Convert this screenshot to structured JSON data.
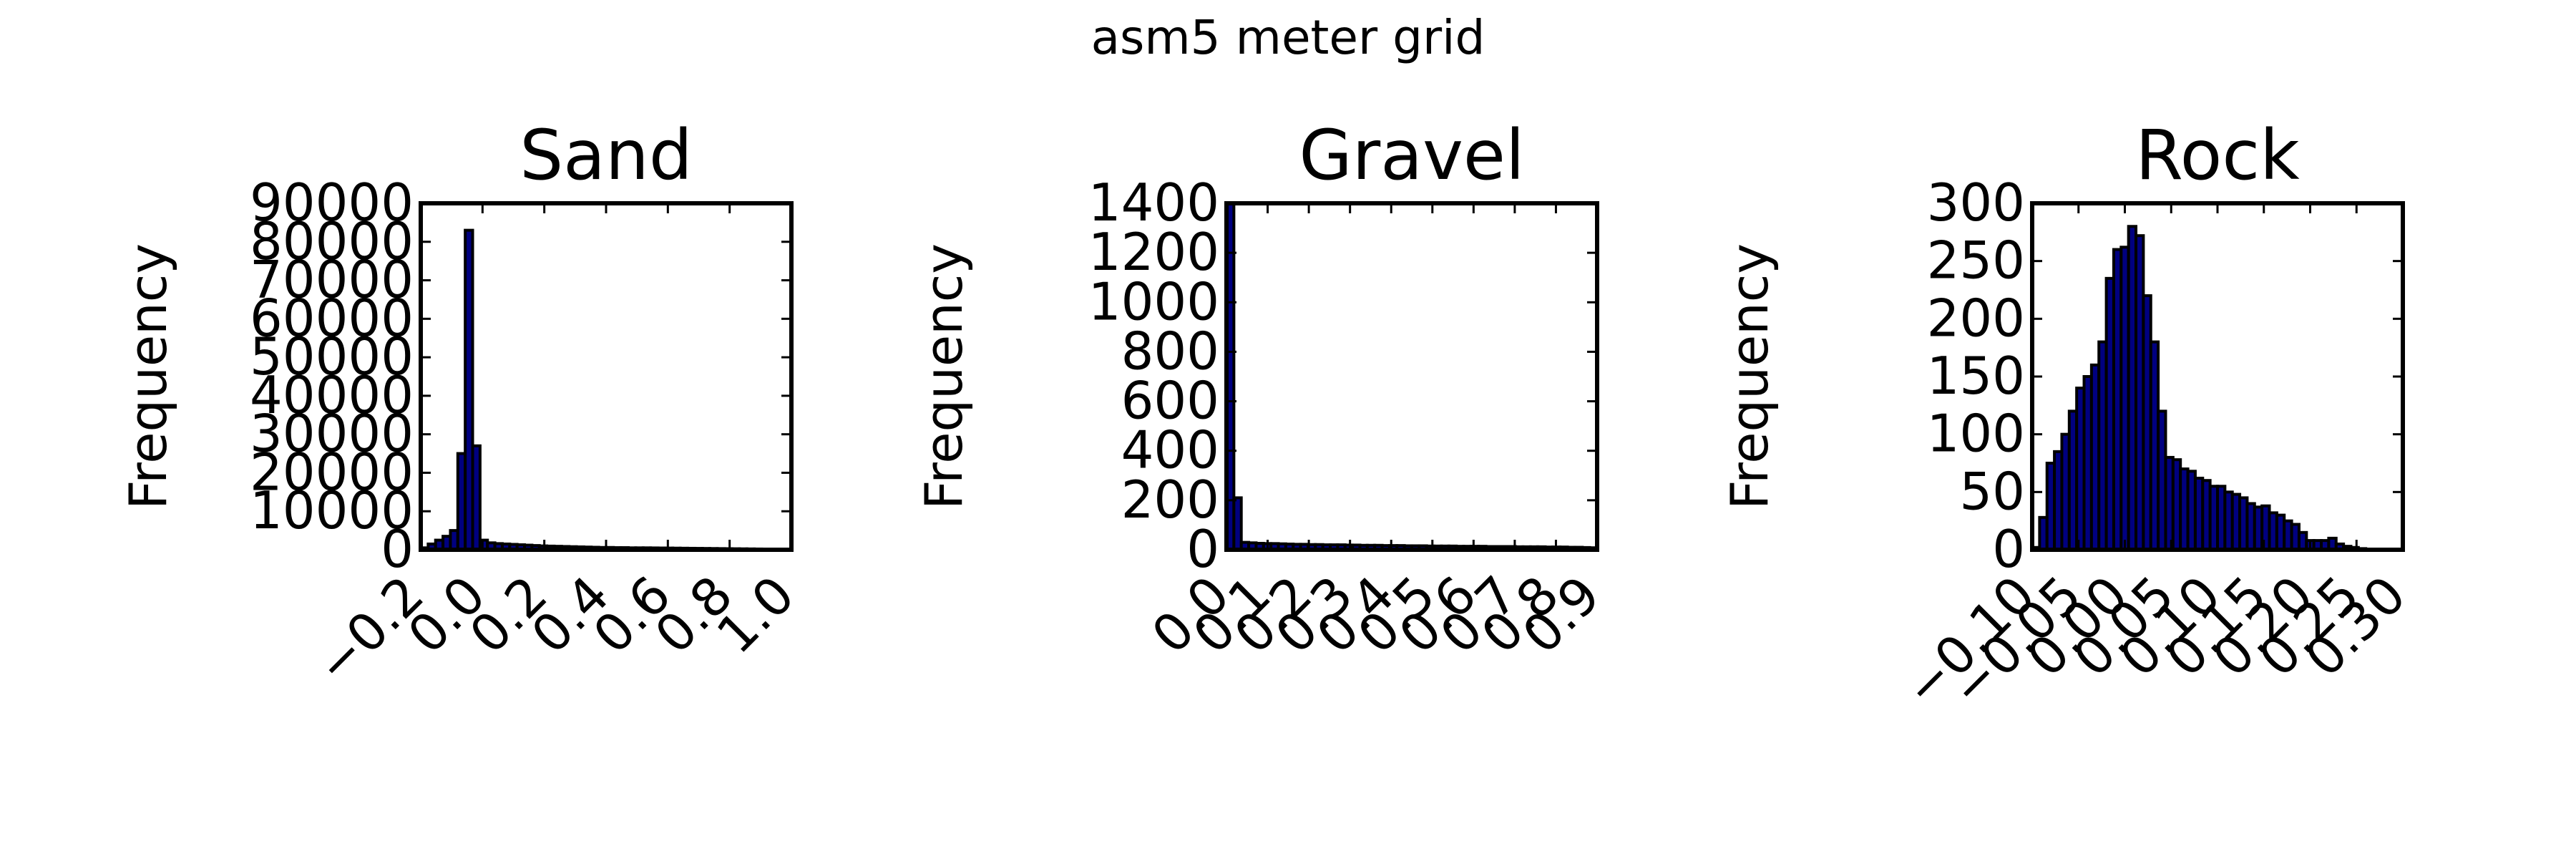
{
  "figure": {
    "suptitle": "asm5 meter grid"
  },
  "colors": {
    "bar_fill": "#000080",
    "bar_edge": "#000000",
    "axes": "#000000",
    "background": "#ffffff"
  },
  "chart_data": [
    {
      "type": "bar",
      "title": "Sand",
      "xlabel": "",
      "ylabel": "Frequency",
      "xlim": [
        -0.2,
        1.0
      ],
      "ylim": [
        0,
        90000
      ],
      "xticks": [
        -0.2,
        0.0,
        0.2,
        0.4,
        0.6,
        0.8,
        1.0
      ],
      "xtick_labels": [
        "−0.2",
        "0.0",
        "0.2",
        "0.4",
        "0.6",
        "0.8",
        "1.0"
      ],
      "yticks": [
        0,
        10000,
        20000,
        30000,
        40000,
        50000,
        60000,
        70000,
        80000,
        90000
      ],
      "ytick_labels": [
        "0",
        "10000",
        "20000",
        "30000",
        "40000",
        "50000",
        "60000",
        "70000",
        "80000",
        "90000"
      ],
      "bins": {
        "start": -0.2,
        "width": 0.024
      },
      "values": [
        500,
        1500,
        2500,
        3500,
        5000,
        25000,
        83000,
        27000,
        2500,
        1800,
        1600,
        1500,
        1400,
        1300,
        1200,
        1100,
        1000,
        950,
        900,
        850,
        800,
        750,
        700,
        650,
        600,
        600,
        550,
        550,
        500,
        500,
        500,
        480,
        460,
        440,
        420,
        400,
        380,
        360,
        340,
        320,
        300,
        280,
        260,
        240,
        220,
        200,
        180,
        160,
        140,
        120
      ]
    },
    {
      "type": "bar",
      "title": "Gravel",
      "xlabel": "",
      "ylabel": "Frequency",
      "xlim": [
        0.0,
        0.9
      ],
      "ylim": [
        0,
        1400
      ],
      "xticks": [
        0.0,
        0.1,
        0.2,
        0.3,
        0.4,
        0.5,
        0.6,
        0.7,
        0.8,
        0.9
      ],
      "xtick_labels": [
        "0.0",
        "0.1",
        "0.2",
        "0.3",
        "0.4",
        "0.5",
        "0.6",
        "0.7",
        "0.8",
        "0.9"
      ],
      "yticks": [
        0,
        200,
        400,
        600,
        800,
        1000,
        1200,
        1400
      ],
      "ytick_labels": [
        "0",
        "200",
        "400",
        "600",
        "800",
        "1000",
        "1200",
        "1400"
      ],
      "bins": {
        "start": 0.0,
        "width": 0.018
      },
      "values": [
        1400,
        210,
        30,
        28,
        26,
        25,
        25,
        24,
        23,
        22,
        22,
        21,
        21,
        20,
        20,
        20,
        19,
        19,
        18,
        18,
        18,
        17,
        17,
        17,
        16,
        16,
        16,
        15,
        15,
        15,
        15,
        14,
        14,
        14,
        14,
        13,
        13,
        13,
        13,
        12,
        12,
        12,
        12,
        11,
        11,
        11,
        10,
        10,
        9,
        8
      ]
    },
    {
      "type": "bar",
      "title": "Rock",
      "xlabel": "",
      "ylabel": "Frequency",
      "xlim": [
        -0.1,
        0.3
      ],
      "ylim": [
        0,
        300
      ],
      "xticks": [
        -0.1,
        -0.05,
        0.0,
        0.05,
        0.1,
        0.15,
        0.2,
        0.25,
        0.3
      ],
      "xtick_labels": [
        "−0.10",
        "−0.05",
        "0.00",
        "0.05",
        "0.10",
        "0.15",
        "0.20",
        "0.25",
        "0.30"
      ],
      "yticks": [
        0,
        50,
        100,
        150,
        200,
        250,
        300
      ],
      "ytick_labels": [
        "0",
        "50",
        "100",
        "150",
        "200",
        "250",
        "300"
      ],
      "bins": {
        "start": -0.1,
        "width": 0.008
      },
      "values": [
        2,
        28,
        75,
        85,
        100,
        120,
        140,
        150,
        160,
        180,
        235,
        260,
        262,
        280,
        272,
        220,
        180,
        120,
        80,
        78,
        70,
        68,
        62,
        60,
        55,
        55,
        50,
        48,
        45,
        40,
        37,
        38,
        32,
        30,
        25,
        22,
        15,
        8,
        8,
        8,
        10,
        5,
        3,
        2,
        1,
        0,
        0,
        0,
        0,
        0
      ]
    }
  ]
}
